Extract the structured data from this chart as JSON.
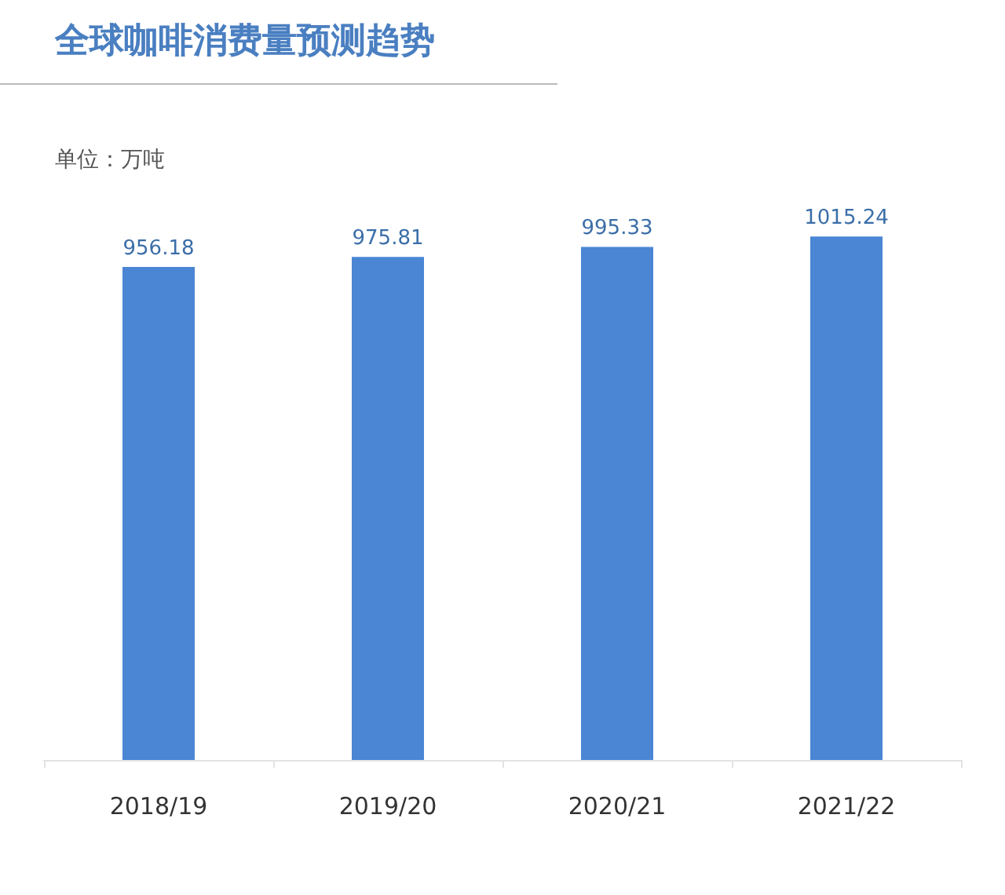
{
  "chart_data": {
    "type": "bar",
    "title": "全球咖啡消费量预测趋势",
    "subtitle": "单位：万吨",
    "categories": [
      "2018/19",
      "2019/20",
      "2020/21",
      "2021/22"
    ],
    "values": [
      956.18,
      975.81,
      995.33,
      1015.24
    ],
    "color": "#4a86d4",
    "data_labels": true
  }
}
